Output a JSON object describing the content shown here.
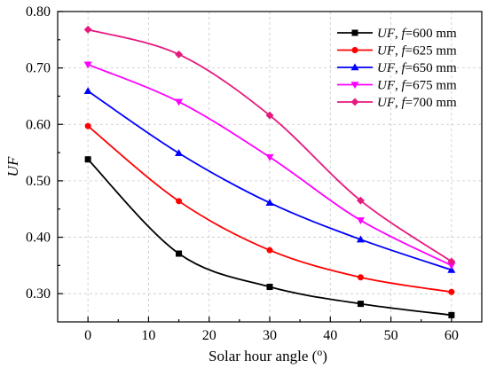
{
  "chart_data": {
    "type": "line",
    "xlabel": "Solar hour angle (",
    "xlabel_unit_sup": "o",
    "xlabel_suffix": ")",
    "ylabel": "UF",
    "xlim": [
      -5,
      65
    ],
    "ylim": [
      0.25,
      0.8
    ],
    "x_ticks": [
      0,
      10,
      20,
      30,
      40,
      50,
      60
    ],
    "x_tick_labels": [
      "0",
      "10",
      "20",
      "30",
      "40",
      "50",
      "60"
    ],
    "y_ticks": [
      0.3,
      0.4,
      0.5,
      0.6,
      0.7,
      0.8
    ],
    "y_tick_labels": [
      "0.30",
      "0.40",
      "0.50",
      "0.60",
      "0.70",
      "0.80"
    ],
    "grid": true,
    "legend_position": "top-right",
    "x": [
      0,
      15,
      30,
      45,
      60
    ],
    "series": [
      {
        "name_italic": "UF",
        "name_sep": ", ",
        "name_f": "f",
        "name_rest": "=600 mm",
        "color": "#000000",
        "marker": "square",
        "values": [
          0.538,
          0.371,
          0.312,
          0.282,
          0.262
        ]
      },
      {
        "name_italic": "UF",
        "name_sep": ", ",
        "name_f": "f",
        "name_rest": "=625 mm",
        "color": "#ff0000",
        "marker": "circle",
        "values": [
          0.597,
          0.464,
          0.377,
          0.329,
          0.303
        ]
      },
      {
        "name_italic": "UF",
        "name_sep": ", ",
        "name_f": "f",
        "name_rest": "=650 mm",
        "color": "#0000ff",
        "marker": "triangle-up",
        "values": [
          0.659,
          0.549,
          0.461,
          0.396,
          0.342
        ]
      },
      {
        "name_italic": "UF",
        "name_sep": ", ",
        "name_f": "f",
        "name_rest": "=675 mm",
        "color": "#ff00ff",
        "marker": "triangle-down",
        "values": [
          0.706,
          0.64,
          0.542,
          0.43,
          0.35
        ]
      },
      {
        "name_italic": "UF",
        "name_sep": ", ",
        "name_f": "f",
        "name_rest": "=700 mm",
        "color": "#e6197f",
        "marker": "diamond",
        "values": [
          0.768,
          0.724,
          0.616,
          0.465,
          0.357
        ]
      }
    ]
  }
}
